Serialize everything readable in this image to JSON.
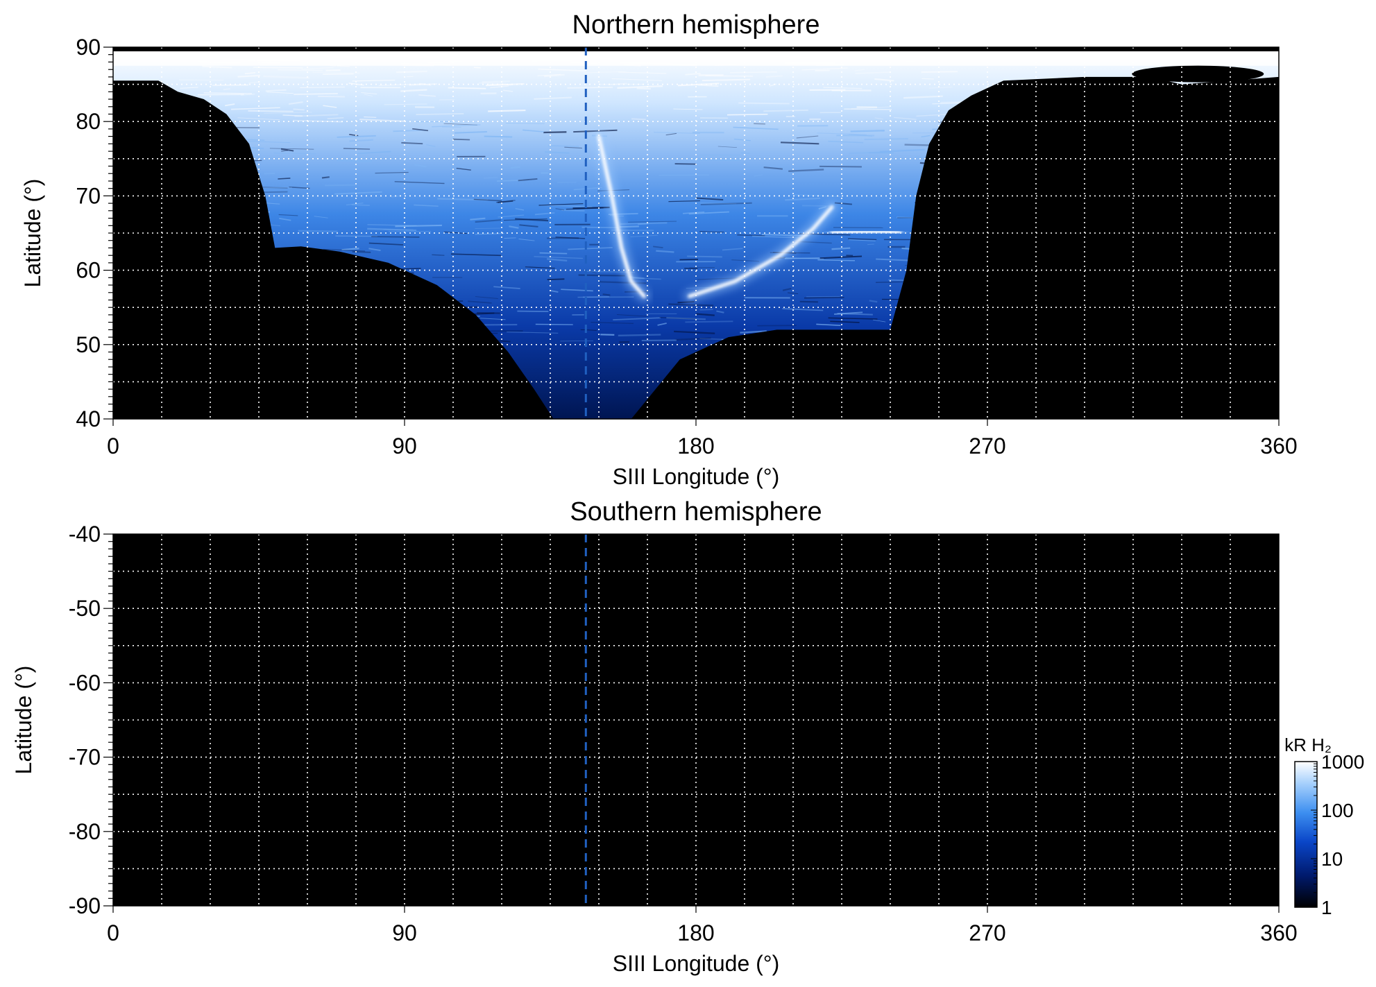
{
  "chart_data": [
    {
      "type": "heatmap",
      "title": "Northern hemisphere",
      "xlabel": "SIII Longitude (°)",
      "ylabel": "Latitude (°)",
      "xlim": [
        0,
        360
      ],
      "ylim": [
        40,
        90
      ],
      "xticks": [
        0,
        90,
        180,
        270,
        360
      ],
      "xtick_labels": [
        "0",
        "90",
        "180",
        "270",
        "360"
      ],
      "yticks": [
        40,
        50,
        60,
        70,
        80,
        90
      ],
      "ytick_labels": [
        "40",
        "50",
        "60",
        "70",
        "80",
        "90"
      ],
      "grid": true,
      "grid_step_x": 15,
      "grid_step_y": 5,
      "reference_line_longitude": 146,
      "reference_line_color": "#2060c0",
      "coverage_lower_boundary_latitude": [
        [
          0,
          85.5
        ],
        [
          14,
          85.5
        ],
        [
          20,
          84.0
        ],
        [
          28,
          83.0
        ],
        [
          35,
          81.0
        ],
        [
          42,
          77.0
        ],
        [
          47,
          70.0
        ],
        [
          50,
          63.0
        ],
        [
          58,
          63.2
        ],
        [
          70,
          62.5
        ],
        [
          85,
          61.0
        ],
        [
          100,
          58.0
        ],
        [
          112,
          54.0
        ],
        [
          122,
          49.0
        ],
        [
          130,
          44.0
        ],
        [
          136,
          40.0
        ],
        [
          160,
          40.0
        ],
        [
          175,
          48.0
        ],
        [
          190,
          51.0
        ],
        [
          205,
          52.0
        ],
        [
          220,
          52.0
        ],
        [
          240,
          52.0
        ],
        [
          245,
          60.0
        ],
        [
          248,
          70.0
        ],
        [
          252,
          77.0
        ],
        [
          258,
          81.5
        ],
        [
          265,
          83.5
        ],
        [
          275,
          85.5
        ],
        [
          300,
          86.0
        ],
        [
          320,
          86.0
        ],
        [
          330,
          85.0
        ],
        [
          360,
          86.0
        ]
      ],
      "emission_features": [
        {
          "name": "main auroral arc",
          "points": [
            [
              178,
              56.5
            ],
            [
              192,
              58.5
            ],
            [
              206,
              62.0
            ],
            [
              216,
              65.5
            ],
            [
              222,
              68.5
            ]
          ]
        },
        {
          "name": "western arc",
          "points": [
            [
              150,
              78.0
            ],
            [
              154,
              70.0
            ],
            [
              157,
              63.0
            ],
            [
              160,
              58.5
            ],
            [
              164,
              56.5
            ]
          ]
        },
        {
          "name": "dawn spot",
          "points": [
            [
              222,
              65.0
            ],
            [
              230,
              65.2
            ],
            [
              238,
              65.2
            ],
            [
              243,
              65.0
            ]
          ]
        }
      ]
    },
    {
      "type": "heatmap",
      "title": "Southern hemisphere",
      "xlabel": "SIII Longitude (°)",
      "ylabel": "Latitude (°)",
      "xlim": [
        0,
        360
      ],
      "ylim": [
        -90,
        -40
      ],
      "xticks": [
        0,
        90,
        180,
        270,
        360
      ],
      "xtick_labels": [
        "0",
        "90",
        "180",
        "270",
        "360"
      ],
      "yticks": [
        -40,
        -50,
        -60,
        -70,
        -80,
        -90
      ],
      "ytick_labels": [
        "-40",
        "-50",
        "-60",
        "-70",
        "-80",
        "-90"
      ],
      "grid": true,
      "grid_step_x": 15,
      "grid_step_y": 5,
      "reference_line_longitude": 146,
      "reference_line_color": "#2060c0",
      "emission_features": []
    }
  ],
  "colorbar": {
    "label": "kR H₂",
    "scale": "log",
    "range": [
      1,
      1000
    ],
    "tick_labels": [
      "1000",
      "100",
      "10",
      "1"
    ],
    "ticks": [
      1000,
      100,
      10,
      1
    ],
    "colors": [
      "#000000",
      "#001a6e",
      "#0a46c8",
      "#3d8ff0",
      "#a6d0fc",
      "#ffffff"
    ]
  }
}
